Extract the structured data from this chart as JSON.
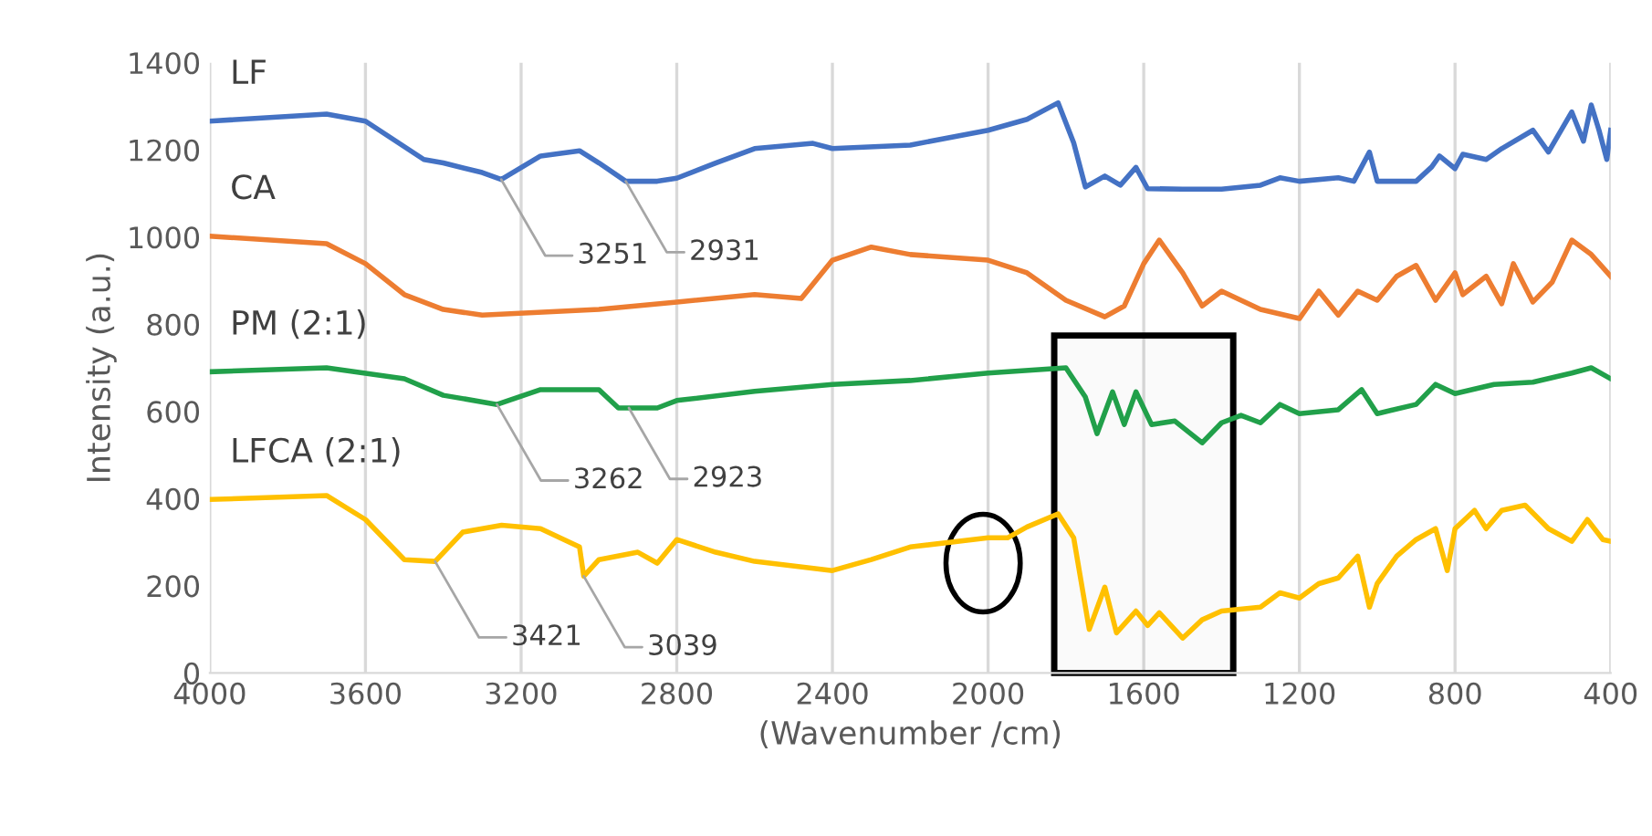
{
  "chart_data": {
    "type": "line",
    "xlabel": "(Wavenumber /cm)",
    "ylabel": "Intensity (a.u.)",
    "xlim": [
      4000,
      400
    ],
    "xticks": [
      4000,
      3600,
      3200,
      2800,
      2400,
      2000,
      1600,
      1200,
      800,
      400
    ],
    "ylim": [
      0,
      1400
    ],
    "yticks": [
      0,
      200,
      400,
      600,
      800,
      1000,
      1200,
      1400
    ],
    "grid": "x",
    "marker": "none",
    "line_style": "solid",
    "series": [
      {
        "name": "LF",
        "color": "#4472c4",
        "x": [
          4000,
          3700,
          3600,
          3450,
          3400,
          3300,
          3251,
          3150,
          3050,
          3000,
          2931,
          2850,
          2800,
          2700,
          2600,
          2450,
          2400,
          2200,
          2000,
          1900,
          1820,
          1780,
          1750,
          1700,
          1660,
          1620,
          1590,
          1500,
          1400,
          1300,
          1250,
          1200,
          1100,
          1060,
          1020,
          1000,
          900,
          860,
          840,
          800,
          780,
          720,
          680,
          600,
          560,
          500,
          470,
          450,
          430,
          410,
          400
        ],
        "values": [
          1266,
          1282,
          1266,
          1178,
          1170,
          1148,
          1132,
          1186,
          1198,
          1170,
          1128,
          1128,
          1135,
          1170,
          1203,
          1215,
          1203,
          1211,
          1245,
          1270,
          1308,
          1216,
          1115,
          1140,
          1119,
          1160,
          1111,
          1110,
          1110,
          1119,
          1136,
          1128,
          1136,
          1128,
          1195,
          1128,
          1128,
          1161,
          1186,
          1157,
          1190,
          1178,
          1203,
          1245,
          1195,
          1287,
          1220,
          1303,
          1245,
          1178,
          1245
        ]
      },
      {
        "name": "CA",
        "color": "#ed7d31",
        "x": [
          4000,
          3700,
          3600,
          3500,
          3400,
          3300,
          3000,
          2800,
          2600,
          2480,
          2400,
          2300,
          2200,
          2000,
          1900,
          1800,
          1700,
          1650,
          1600,
          1560,
          1500,
          1450,
          1400,
          1300,
          1200,
          1150,
          1100,
          1050,
          1000,
          950,
          900,
          850,
          800,
          780,
          720,
          680,
          650,
          600,
          550,
          500,
          450,
          400
        ],
        "values": [
          1002,
          985,
          939,
          868,
          834,
          821,
          834,
          851,
          868,
          859,
          947,
          977,
          960,
          947,
          918,
          855,
          817,
          842,
          939,
          993,
          918,
          842,
          876,
          834,
          813,
          876,
          821,
          876,
          855,
          910,
          935,
          855,
          918,
          868,
          910,
          847,
          939,
          851,
          897,
          993,
          960,
          910
        ]
      },
      {
        "name": "PM (2:1)",
        "color": "#21a04a",
        "x": [
          4000,
          3700,
          3500,
          3400,
          3262,
          3150,
          3000,
          2950,
          2850,
          2800,
          2600,
          2400,
          2200,
          2000,
          1800,
          1750,
          1720,
          1680,
          1650,
          1620,
          1580,
          1520,
          1450,
          1400,
          1350,
          1300,
          1250,
          1200,
          1100,
          1040,
          1000,
          900,
          850,
          800,
          700,
          600,
          500,
          450,
          400
        ],
        "values": [
          691,
          700,
          675,
          637,
          616,
          650,
          650,
          608,
          608,
          625,
          646,
          662,
          671,
          688,
          700,
          633,
          549,
          645,
          570,
          645,
          570,
          578,
          528,
          574,
          591,
          574,
          616,
          595,
          604,
          650,
          595,
          616,
          662,
          641,
          662,
          667,
          688,
          700,
          675
        ]
      },
      {
        "name": "LFCA (2:1)",
        "color": "#ffc000",
        "x": [
          4000,
          3700,
          3600,
          3500,
          3421,
          3350,
          3250,
          3150,
          3050,
          3039,
          3000,
          2900,
          2850,
          2800,
          2700,
          2600,
          2400,
          2300,
          2200,
          2000,
          1950,
          1900,
          1820,
          1780,
          1740,
          1700,
          1670,
          1620,
          1590,
          1560,
          1500,
          1450,
          1400,
          1300,
          1250,
          1200,
          1150,
          1100,
          1050,
          1020,
          1000,
          950,
          900,
          850,
          820,
          800,
          750,
          720,
          680,
          620,
          560,
          500,
          460,
          420,
          400
        ],
        "values": [
          398,
          407,
          352,
          260,
          256,
          323,
          339,
          331,
          289,
          222,
          260,
          277,
          252,
          306,
          277,
          256,
          235,
          260,
          289,
          310,
          310,
          335,
          365,
          310,
          100,
          197,
          92,
          142,
          109,
          138,
          80,
          122,
          142,
          151,
          184,
          172,
          205,
          218,
          268,
          151,
          205,
          268,
          306,
          331,
          235,
          331,
          373,
          331,
          373,
          385,
          331,
          302,
          352,
          306,
          302
        ]
      }
    ],
    "annotations": [
      {
        "text": "3251",
        "x": 3251,
        "y": 1132
      },
      {
        "text": "2931",
        "x": 2931,
        "y": 1128
      },
      {
        "text": "3262",
        "x": 3262,
        "y": 616
      },
      {
        "text": "2923",
        "x": 2923,
        "y": 608
      },
      {
        "text": "3421",
        "x": 3421,
        "y": 256
      },
      {
        "text": "3039",
        "x": 3039,
        "y": 222
      }
    ],
    "bands": [
      {
        "axis": "x",
        "from": 1830,
        "to": 1370,
        "color": "#000000"
      }
    ]
  }
}
